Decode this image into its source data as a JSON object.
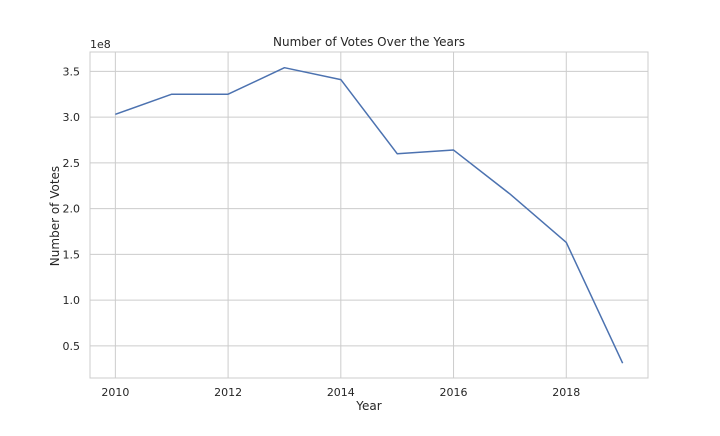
{
  "chart_data": {
    "type": "line",
    "title": "Number of Votes Over the Years",
    "xlabel": "Year",
    "ylabel": "Number of Votes",
    "y_offset_label": "1e8",
    "x": [
      2010,
      2011,
      2012,
      2013,
      2014,
      2015,
      2016,
      2017,
      2018,
      2019
    ],
    "series": [
      {
        "values": [
          303000000,
          325000000,
          325000000,
          354000000,
          341000000,
          260000000,
          264000000,
          216000000,
          163000000,
          31000000
        ],
        "color": "#4c72b0"
      }
    ],
    "xlim": [
      2009.55,
      2019.45
    ],
    "ylim": [
      14850000,
      371150000
    ],
    "x_ticks": [
      2010,
      2012,
      2014,
      2016,
      2018
    ],
    "x_tick_labels": [
      "2010",
      "2012",
      "2014",
      "2016",
      "2018"
    ],
    "y_ticks": [
      50000000,
      100000000,
      150000000,
      200000000,
      250000000,
      300000000,
      350000000
    ],
    "y_tick_labels": [
      "0.5",
      "1.0",
      "1.5",
      "2.0",
      "2.5",
      "3.0",
      "3.5"
    ],
    "grid": true,
    "colors": {
      "grid": "#cccccc",
      "spine": "#cccccc",
      "text": "#262626",
      "background": "#ffffff"
    }
  }
}
